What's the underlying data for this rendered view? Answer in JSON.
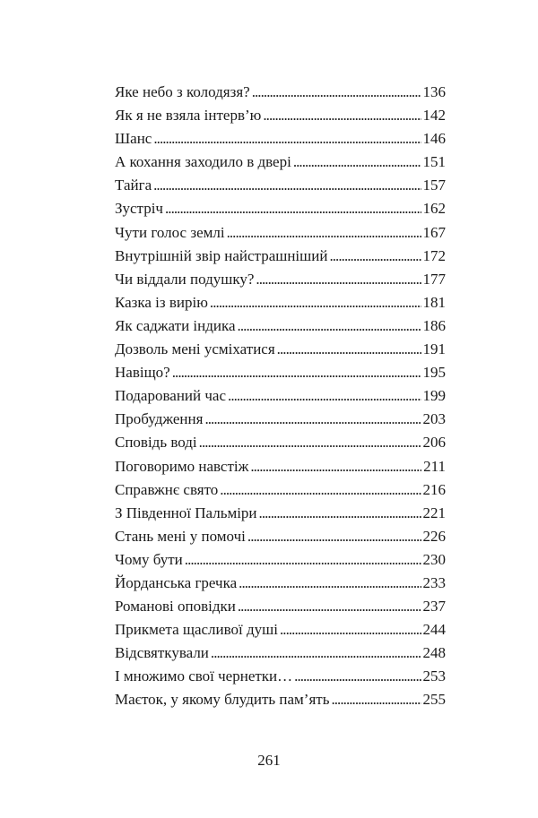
{
  "toc": [
    {
      "title": "Яке небо з колодязя?",
      "page": "136"
    },
    {
      "title": "Як я не взяла інтерв’ю",
      "page": "142"
    },
    {
      "title": "Шанс",
      "page": "146"
    },
    {
      "title": "А кохання заходило в двері",
      "page": "151"
    },
    {
      "title": "Тайга",
      "page": "157"
    },
    {
      "title": "Зустріч",
      "page": "162"
    },
    {
      "title": "Чути голос землі",
      "page": "167"
    },
    {
      "title": "Внутрішній звір найстрашніший",
      "page": "172"
    },
    {
      "title": "Чи віддали подушку?",
      "page": "177"
    },
    {
      "title": "Казка із вирію",
      "page": "181"
    },
    {
      "title": "Як саджати індика",
      "page": "186"
    },
    {
      "title": "Дозволь мені усміхатися",
      "page": "191"
    },
    {
      "title": "Навіщо?",
      "page": "195"
    },
    {
      "title": "Подарований час",
      "page": "199"
    },
    {
      "title": "Пробудження",
      "page": "203"
    },
    {
      "title": "Сповідь воді",
      "page": "206"
    },
    {
      "title": "Поговоримо навстіж",
      "page": "211"
    },
    {
      "title": "Справжнє свято",
      "page": "216"
    },
    {
      "title": "З Південної Пальміри",
      "page": "221"
    },
    {
      "title": "Стань мені у помочі",
      "page": "226"
    },
    {
      "title": "Чому бути",
      "page": "230"
    },
    {
      "title": "Йорданська гречка",
      "page": "233"
    },
    {
      "title": "Романові оповідки",
      "page": "237"
    },
    {
      "title": "Прикмета щасливої душі",
      "page": "244"
    },
    {
      "title": "Відсвяткували",
      "page": "248"
    },
    {
      "title": "І множимо свої чернетки…",
      "page": "253"
    },
    {
      "title": "Маєток, у якому блудить пам’ять",
      "page": "255"
    }
  ],
  "page_number": "261"
}
